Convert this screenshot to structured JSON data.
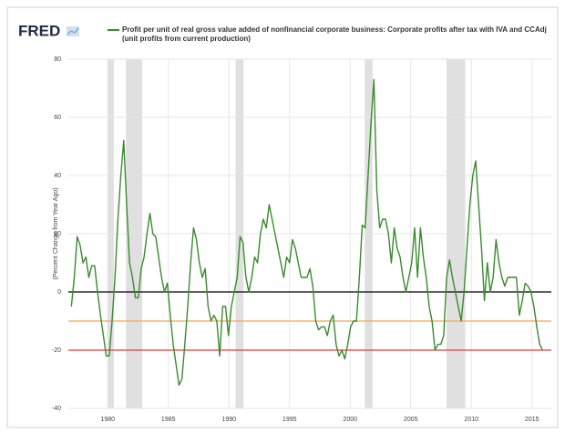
{
  "chart_data": {
    "type": "line",
    "logo": "FRED",
    "legend_text": "Profit per unit of real gross value added of nonfinancial corporate business: Corporate profits after tax with IVA and CCAdj (unit profits from current production)",
    "ylabel": "(Percent Change from Year Ago)",
    "xlim": [
      1976.75,
      2016.6
    ],
    "xticks": [
      1980,
      1985,
      1990,
      1995,
      2000,
      2005,
      2010,
      2015
    ],
    "ylim": [
      -40,
      80
    ],
    "yticks": [
      -40,
      -20,
      0,
      20,
      40,
      60,
      80
    ],
    "grid": true,
    "recessions": [
      [
        1980,
        1980.5
      ],
      [
        1981.5,
        1982.85
      ],
      [
        1990.55,
        1991.2
      ],
      [
        2001.2,
        2001.85
      ],
      [
        2007.95,
        2009.5
      ]
    ],
    "recession_color": "#e0e0e0",
    "reference_lines": [
      {
        "value": 0,
        "color": "#000000"
      },
      {
        "value": -10,
        "color": "#f5a55a"
      },
      {
        "value": -20,
        "color": "#e33b3b"
      }
    ],
    "x": [
      1977,
      1977.24,
      1977.48,
      1977.72,
      1977.96,
      1978.2,
      1978.44,
      1978.68,
      1978.92,
      1979.16,
      1979.4,
      1979.64,
      1979.88,
      1980.12,
      1980.36,
      1980.6,
      1980.84,
      1981.08,
      1981.32,
      1981.56,
      1981.8,
      1982.04,
      1982.28,
      1982.52,
      1982.76,
      1983,
      1983.24,
      1983.48,
      1983.72,
      1983.96,
      1984.2,
      1984.44,
      1984.68,
      1984.92,
      1985.16,
      1985.4,
      1985.64,
      1985.88,
      1986.12,
      1986.36,
      1986.6,
      1986.84,
      1987.08,
      1987.32,
      1987.56,
      1987.8,
      1988.04,
      1988.28,
      1988.52,
      1988.76,
      1989,
      1989.24,
      1989.48,
      1989.72,
      1989.96,
      1990.2,
      1990.44,
      1990.68,
      1990.92,
      1991.16,
      1991.4,
      1991.64,
      1991.88,
      1992.12,
      1992.36,
      1992.6,
      1992.84,
      1993.08,
      1993.32,
      1993.56,
      1993.8,
      1994.04,
      1994.28,
      1994.52,
      1994.76,
      1995,
      1995.24,
      1995.48,
      1995.72,
      1995.96,
      1996.2,
      1996.44,
      1996.68,
      1996.92,
      1997.16,
      1997.4,
      1997.64,
      1997.88,
      1998.12,
      1998.36,
      1998.6,
      1998.84,
      1999.08,
      1999.32,
      1999.56,
      1999.8,
      2000.04,
      2000.28,
      2000.52,
      2000.76,
      2001,
      2001.24,
      2001.48,
      2001.72,
      2001.96,
      2002.2,
      2002.44,
      2002.68,
      2002.92,
      2003.16,
      2003.4,
      2003.64,
      2003.88,
      2004.12,
      2004.36,
      2004.6,
      2004.84,
      2005.08,
      2005.32,
      2005.56,
      2005.8,
      2006.04,
      2006.28,
      2006.52,
      2006.76,
      2007,
      2007.24,
      2007.48,
      2007.72,
      2007.96,
      2008.2,
      2008.44,
      2008.68,
      2008.92,
      2009.16,
      2009.4,
      2009.64,
      2009.88,
      2010.12,
      2010.36,
      2010.6,
      2010.84,
      2011.08,
      2011.32,
      2011.56,
      2011.8,
      2012.04,
      2012.28,
      2012.52,
      2012.76,
      2013,
      2013.24,
      2013.48,
      2013.72,
      2013.96,
      2014.2,
      2014.44,
      2014.68,
      2014.92,
      2015.16,
      2015.4,
      2015.64,
      2015.88
    ],
    "series": [
      {
        "name": "Profit per unit of real gross value added of nonfinancial corporate business: Corporate profits after tax with IVA and CCAdj (unit profits from current production)",
        "color": "#3a8a2e",
        "values": [
          -5,
          5,
          19,
          16,
          10,
          12,
          5,
          9,
          9,
          0,
          -8,
          -15,
          -22,
          -22,
          -10,
          5,
          25,
          40,
          52,
          30,
          10,
          5,
          -2,
          -2,
          8,
          12,
          20,
          27,
          20,
          19,
          12,
          5,
          0,
          3,
          -8,
          -18,
          -25,
          -32,
          -30,
          -18,
          -5,
          10,
          22,
          18,
          10,
          5,
          8,
          -5,
          -10,
          -8,
          -10,
          -22,
          -5,
          -5,
          -15,
          -5,
          0,
          5,
          19,
          17,
          5,
          0,
          5,
          12,
          10,
          20,
          25,
          22,
          30,
          25,
          20,
          15,
          10,
          5,
          12,
          10,
          18,
          15,
          10,
          5,
          5,
          5,
          8,
          2,
          -10,
          -13,
          -12,
          -12,
          -15,
          -10,
          -8,
          -18,
          -22,
          -20,
          -23,
          -18,
          -12,
          -10,
          -10,
          5,
          23,
          22,
          40,
          58,
          73,
          35,
          22,
          25,
          25,
          20,
          10,
          22,
          15,
          12,
          5,
          0,
          5,
          10,
          22,
          5,
          22,
          12,
          5,
          -5,
          -10,
          -20,
          -18,
          -18,
          -15,
          5,
          11,
          5,
          0,
          -5,
          -10,
          0,
          15,
          30,
          40,
          45,
          30,
          15,
          -3,
          10,
          0,
          5,
          18,
          10,
          5,
          2,
          5,
          5,
          5,
          5,
          -8,
          -3,
          3,
          2,
          0,
          -5,
          -12,
          -18,
          -20
        ]
      }
    ]
  }
}
